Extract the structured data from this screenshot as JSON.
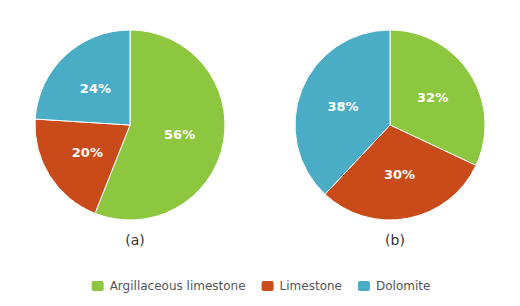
{
  "chart_data": [
    {
      "type": "pie",
      "xlabel": "(a)",
      "categories": [
        "Argillaceous limestone",
        "Limestone",
        "Dolomite"
      ],
      "values": [
        56,
        20,
        24
      ],
      "value_labels": [
        "56%",
        "20%",
        "24%"
      ],
      "colors": [
        "#8DC63F",
        "#C94B1A",
        "#4BACC6"
      ],
      "data_labels": true,
      "legend": "bottom"
    },
    {
      "type": "pie",
      "xlabel": "(b)",
      "categories": [
        "Argillaceous limestone",
        "Limestone",
        "Dolomite"
      ],
      "values": [
        32,
        30,
        38
      ],
      "value_labels": [
        "32%",
        "30%",
        "38%"
      ],
      "colors": [
        "#8DC63F",
        "#C94B1A",
        "#4BACC6"
      ],
      "data_labels": true,
      "legend": "bottom"
    }
  ]
}
